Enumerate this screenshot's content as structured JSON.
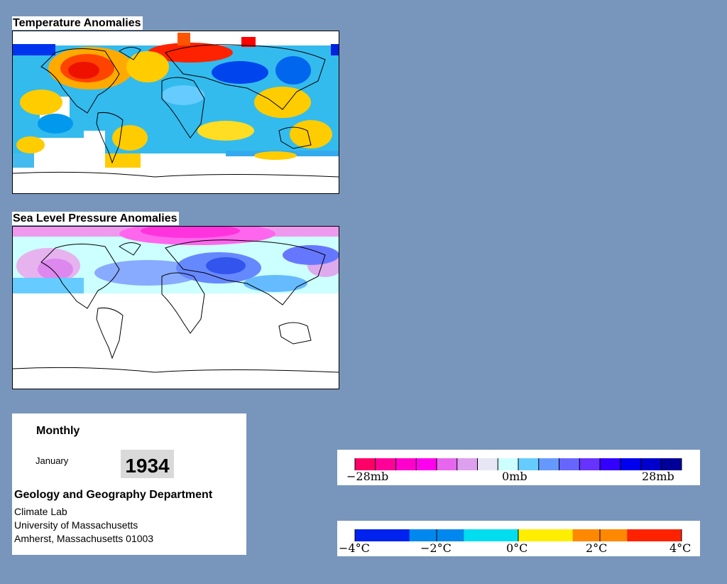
{
  "temperature_panel": {
    "title": "Temperature Anomalies"
  },
  "pressure_panel": {
    "title": "Sea Level Pressure Anomalies"
  },
  "info": {
    "frequency": "Monthly",
    "month": "January",
    "year": "1934",
    "department": "Geology and Geography Department",
    "lab": "Climate Lab",
    "university": "University of Massachusetts",
    "address": "Amherst, Massachusetts 01003"
  },
  "pressure_legend": {
    "labels": [
      "−28mb",
      "0mb",
      "28mb"
    ],
    "colors": [
      "#ff0066",
      "#ff0099",
      "#ff00cc",
      "#ff00ee",
      "#e666ee",
      "#dda0ee",
      "#e6e6f5",
      "#ccffff",
      "#66ccff",
      "#6699ff",
      "#6666ff",
      "#6633ff",
      "#3300ff",
      "#0000ee",
      "#0000cc",
      "#000099"
    ]
  },
  "temperature_legend": {
    "labels": [
      "−4°C",
      "−2°C",
      "0°C",
      "2°C",
      "4°C"
    ],
    "colors": [
      "#0022ee",
      "#0088ee",
      "#00ddee",
      "#ffee00",
      "#ff8800",
      "#ff2200"
    ]
  }
}
